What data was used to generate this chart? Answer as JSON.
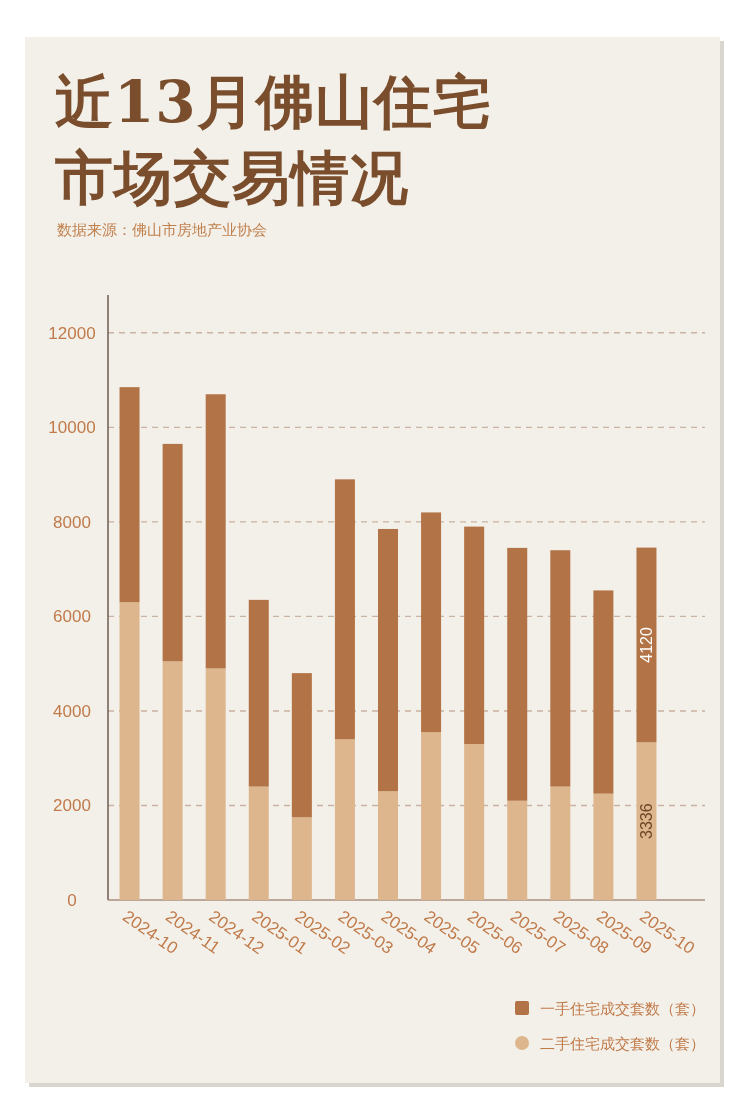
{
  "chart_data": {
    "type": "bar",
    "title": "近13月佛山住宅市场交易情况",
    "annotations": [
      "数据来源：佛山市房地产业协会"
    ],
    "categories": [
      "2024-10",
      "2024-11",
      "2024-12",
      "2025-01",
      "2025-02",
      "2025-03",
      "2025-04",
      "2025-05",
      "2025-06",
      "2025-07",
      "2025-08",
      "2025-09",
      "2025-10"
    ],
    "series": [
      {
        "name": "二手住宅成交套数（套）",
        "color": "#ddb68d",
        "values": [
          6300,
          5050,
          4900,
          2400,
          1750,
          3400,
          2300,
          3550,
          3300,
          2100,
          2400,
          2250,
          3336
        ],
        "value_labels": [
          null,
          null,
          null,
          null,
          null,
          null,
          null,
          null,
          null,
          null,
          null,
          null,
          "3336"
        ]
      },
      {
        "name": "一手住宅成交套数（套）",
        "color": "#b27346",
        "values": [
          4550,
          4600,
          5800,
          3950,
          3050,
          5500,
          5550,
          4650,
          4600,
          5350,
          5000,
          4300,
          4120
        ],
        "value_labels": [
          null,
          null,
          null,
          null,
          null,
          null,
          null,
          null,
          null,
          null,
          null,
          null,
          "4120"
        ]
      }
    ],
    "stacked": true,
    "ylim": [
      0,
      12800
    ],
    "yticks": [
      0,
      2000,
      4000,
      6000,
      8000,
      10000,
      12000
    ],
    "grid": "y",
    "legend": "bottom right"
  }
}
